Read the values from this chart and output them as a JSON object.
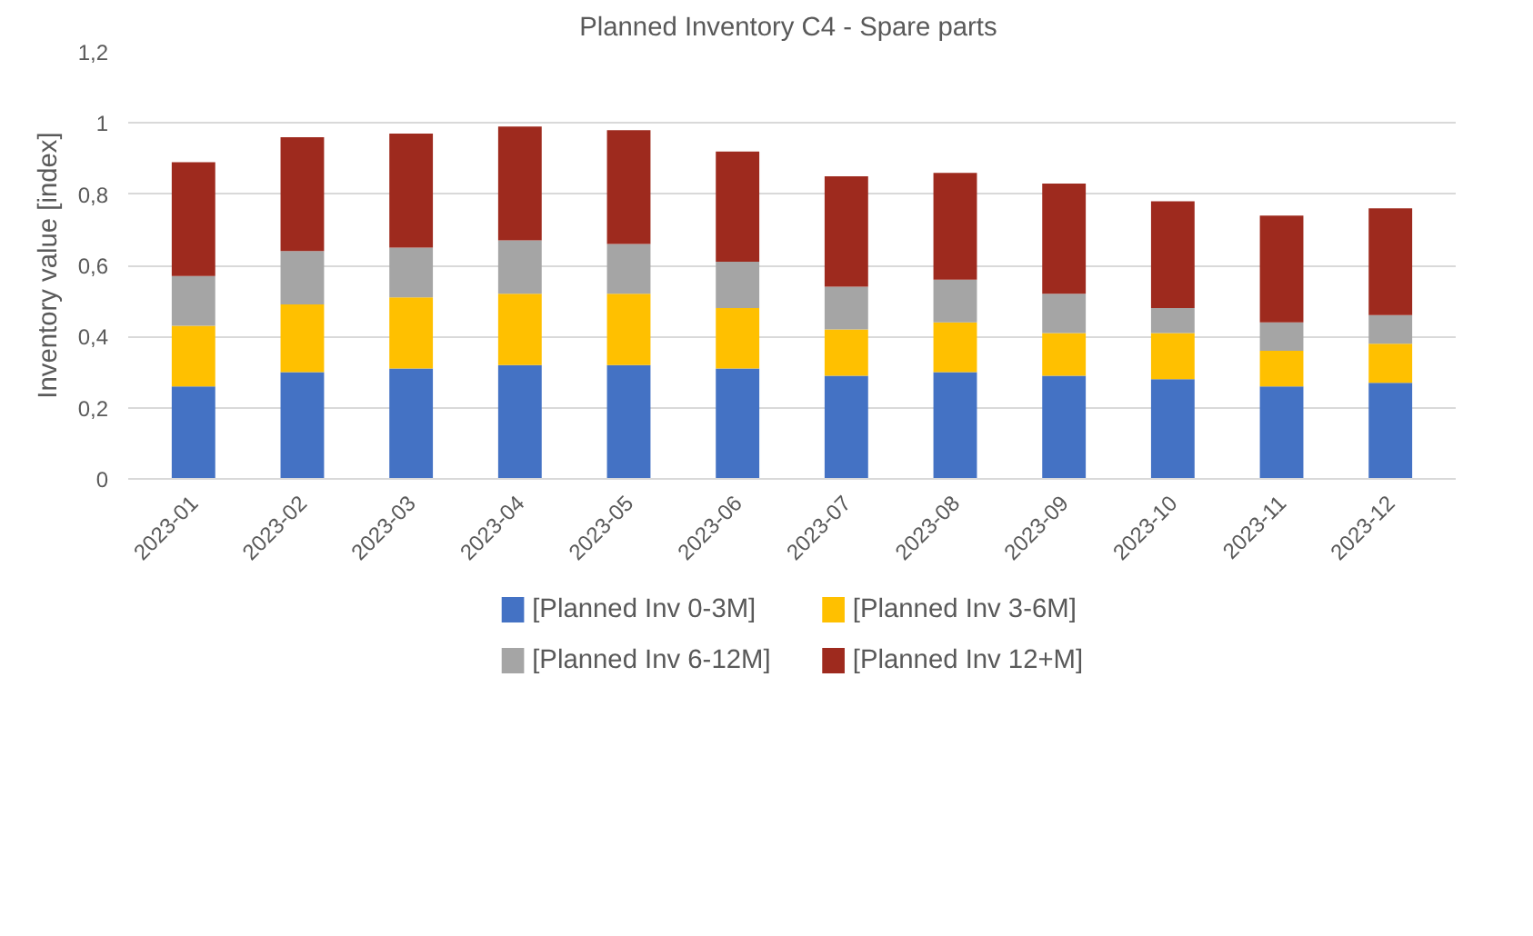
{
  "chart_data": {
    "type": "bar",
    "title": "Planned Inventory  C4 - Spare parts",
    "ylabel": "Inventory value [index]",
    "stacked": true,
    "categories": [
      "2023-01",
      "2023-02",
      "2023-03",
      "2023-04",
      "2023-05",
      "2023-06",
      "2023-07",
      "2023-08",
      "2023-09",
      "2023-10",
      "2023-11",
      "2023-12"
    ],
    "series": [
      {
        "name": "[Planned Inv 0-3M]",
        "color": "#4472c4",
        "values": [
          0.26,
          0.3,
          0.31,
          0.32,
          0.32,
          0.31,
          0.29,
          0.3,
          0.29,
          0.28,
          0.26,
          0.27
        ]
      },
      {
        "name": "[Planned Inv 3-6M]",
        "color": "#ffc000",
        "values": [
          0.17,
          0.19,
          0.2,
          0.2,
          0.2,
          0.17,
          0.13,
          0.14,
          0.12,
          0.13,
          0.1,
          0.11
        ]
      },
      {
        "name": "[Planned Inv 6-12M]",
        "color": "#a5a5a5",
        "values": [
          0.14,
          0.15,
          0.14,
          0.15,
          0.14,
          0.13,
          0.12,
          0.12,
          0.11,
          0.07,
          0.08,
          0.08
        ]
      },
      {
        "name": "[Planned Inv 12+M]",
        "color": "#9e2a1e",
        "values": [
          0.32,
          0.32,
          0.32,
          0.32,
          0.32,
          0.31,
          0.31,
          0.3,
          0.31,
          0.3,
          0.3,
          0.3
        ]
      }
    ],
    "ylim": [
      0,
      1.2
    ],
    "yticks": [
      0,
      {
        "value": 0.2,
        "label": "0,2"
      },
      {
        "value": 0.4,
        "label": "0,4"
      },
      {
        "value": 0.6,
        "label": "0,6"
      },
      {
        "value": 0.8,
        "label": "0,8"
      },
      1,
      {
        "value": 1.2,
        "label": "1,2"
      }
    ],
    "grid": "y",
    "legend": "bottom"
  }
}
